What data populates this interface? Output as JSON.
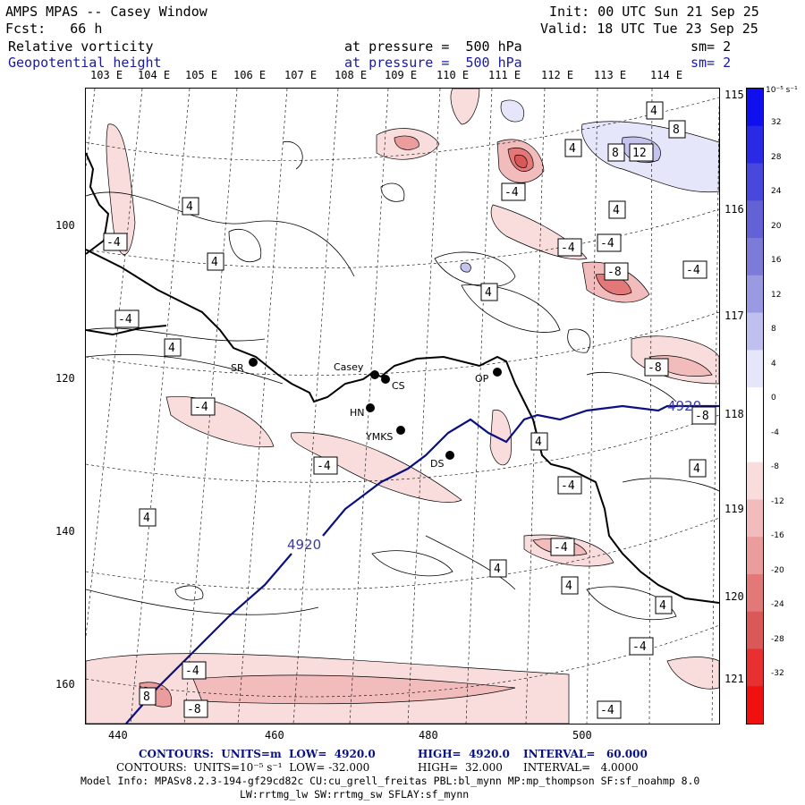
{
  "header": {
    "title": "AMPS MPAS -- Casey Window",
    "init": "Init: 00 UTC Sun 21 Sep 25",
    "fcst": "Fcst:   66 h",
    "valid": "Valid: 18 UTC Tue 23 Sep 25",
    "field1": "Relative vorticity",
    "field1_level": "at pressure =  500 hPa",
    "field1_sm": "sm= 2",
    "field2": "Geopotential height",
    "field2_level": "at pressure =  500 hPa",
    "field2_sm": "sm= 2"
  },
  "lon_labels_top": [
    "103 E",
    "104 E",
    "105 E",
    "106 E",
    "107 E",
    "108 E",
    "109 E",
    "110 E",
    "111 E",
    "112 E",
    "113 E",
    "114 E"
  ],
  "lon_labels_right": [
    "115 E",
    "116 E",
    "117 E",
    "118 E",
    "119 E",
    "120 E",
    "121 E"
  ],
  "y_axis": [
    "100",
    "120",
    "140",
    "160"
  ],
  "x_axis": [
    "440",
    "460",
    "480",
    "500"
  ],
  "stations": [
    "SR",
    "Casey",
    "CS",
    "HN",
    "YMKS",
    "DS",
    "OP"
  ],
  "contour_labels": {
    "height": "4920",
    "vort": [
      "4",
      "-4",
      "-8",
      "8",
      "12"
    ]
  },
  "colorbar": {
    "unit": "10⁻⁵ s⁻¹",
    "ticks": [
      "32",
      "28",
      "24",
      "20",
      "16",
      "12",
      "8",
      "4",
      "0",
      "-4",
      "-8",
      "-12",
      "-16",
      "-20",
      "-24",
      "-28",
      "-32"
    ],
    "colors": [
      "#1010ee",
      "#2a2ae6",
      "#4848dc",
      "#6262d6",
      "#7c7cd8",
      "#9a9ae2",
      "#c0c0f0",
      "#e6e6fa",
      "#ffffff",
      "#ffffff",
      "#f9dcdc",
      "#f2bcbc",
      "#eb9c9c",
      "#e37878",
      "#db5858",
      "#e83030",
      "#f01010"
    ]
  },
  "footer": {
    "line1_a": "CONTOURS:  UNITS=m  LOW=  4920.0",
    "line1_b": "HIGH=  4920.0",
    "line1_c": "INTERVAL=   60.000",
    "line2_a": "CONTOURS:  UNITS=10⁻⁵ s⁻¹  LOW= -32.000",
    "line2_b": "HIGH=  32.000",
    "line2_c": "INTERVAL=   4.0000",
    "model1": "Model Info: MPASv8.2.3-194-gf29cd82c CU:cu_grell_freitas PBL:bl_mynn MP:mp_thompson SF:sf_noahmp 8.0",
    "model2": "LW:rrtmg_lw SW:rrtmg_sw SFLAY:sf_mynn"
  }
}
